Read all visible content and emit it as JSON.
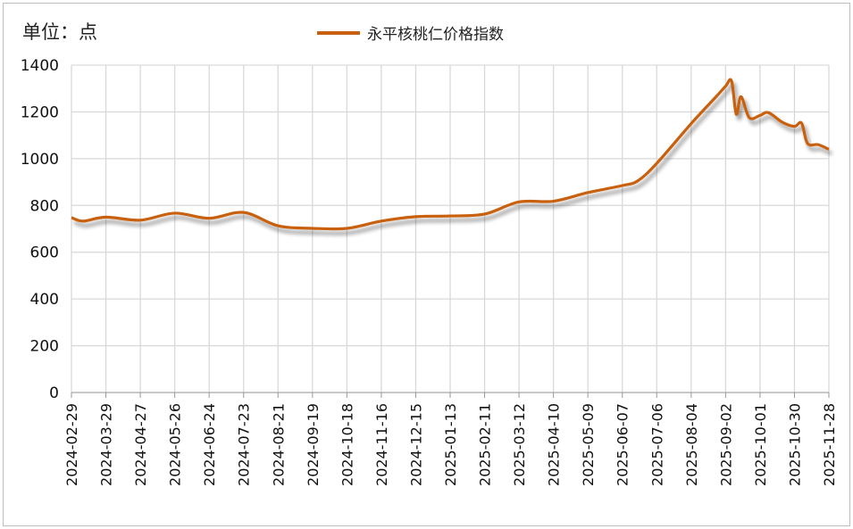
{
  "unit_label": "单位：点",
  "chart_data": {
    "type": "line",
    "title": "",
    "xlabel": "",
    "ylabel": "单位：点",
    "ylim": [
      0,
      1400
    ],
    "yticks": [
      0,
      200,
      400,
      600,
      800,
      1000,
      1200,
      1400
    ],
    "xlim": [
      "2024-02-29",
      "2025-11-28"
    ],
    "xticks": [
      "2024-02-29",
      "2024-03-29",
      "2024-04-27",
      "2024-05-26",
      "2024-06-24",
      "2024-07-23",
      "2024-08-21",
      "2024-09-19",
      "2024-10-18",
      "2024-11-16",
      "2024-12-15",
      "2025-01-13",
      "2025-02-11",
      "2025-03-12",
      "2025-04-10",
      "2025-05-09",
      "2025-06-07",
      "2025-07-06",
      "2025-08-04",
      "2025-09-02",
      "2025-10-01",
      "2025-10-30",
      "2025-11-28"
    ],
    "grid": true,
    "legend_position": "top",
    "series": [
      {
        "name": "永平核桃仁价格指数",
        "color": "#c8600f",
        "points": [
          [
            "2024-02-29",
            748
          ],
          [
            "2024-03-10",
            733
          ],
          [
            "2024-03-29",
            750
          ],
          [
            "2024-04-27",
            737
          ],
          [
            "2024-05-26",
            767
          ],
          [
            "2024-06-24",
            745
          ],
          [
            "2024-07-23",
            770
          ],
          [
            "2024-08-21",
            713
          ],
          [
            "2024-09-19",
            702
          ],
          [
            "2024-10-18",
            702
          ],
          [
            "2024-11-16",
            733
          ],
          [
            "2024-12-15",
            752
          ],
          [
            "2025-01-13",
            755
          ],
          [
            "2025-02-11",
            763
          ],
          [
            "2025-03-12",
            815
          ],
          [
            "2025-04-10",
            818
          ],
          [
            "2025-05-09",
            855
          ],
          [
            "2025-06-07",
            885
          ],
          [
            "2025-06-20",
            905
          ],
          [
            "2025-07-06",
            980
          ],
          [
            "2025-08-04",
            1150
          ],
          [
            "2025-08-25",
            1265
          ],
          [
            "2025-09-02",
            1310
          ],
          [
            "2025-09-07",
            1332
          ],
          [
            "2025-09-11",
            1190
          ],
          [
            "2025-09-15",
            1265
          ],
          [
            "2025-09-22",
            1175
          ],
          [
            "2025-10-01",
            1185
          ],
          [
            "2025-10-08",
            1197
          ],
          [
            "2025-10-20",
            1155
          ],
          [
            "2025-10-30",
            1138
          ],
          [
            "2025-11-05",
            1152
          ],
          [
            "2025-11-10",
            1065
          ],
          [
            "2025-11-19",
            1060
          ],
          [
            "2025-11-28",
            1040
          ]
        ]
      }
    ]
  }
}
